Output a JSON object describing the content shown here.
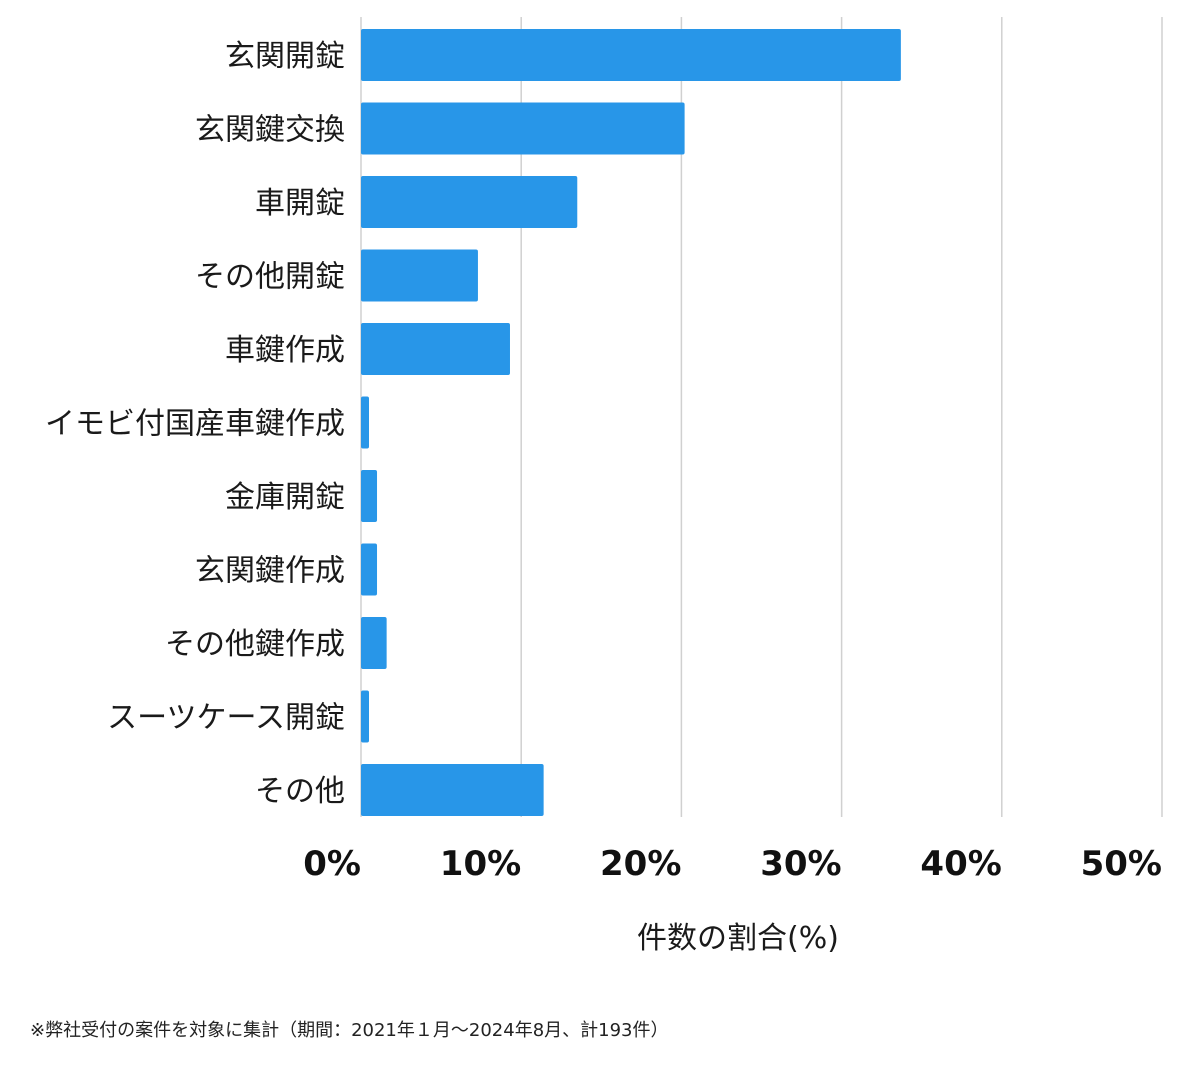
{
  "chart_data": {
    "type": "bar",
    "orientation": "horizontal",
    "categories": [
      "玄関開錠",
      "玄関鍵交換",
      "車開錠",
      "その他開錠",
      "車鍵作成",
      "イモビ付国産車鍵作成",
      "金庫開錠",
      "玄関鍵作成",
      "その他鍵作成",
      "スーツケース開錠",
      "その他"
    ],
    "values": [
      33.7,
      20.2,
      13.5,
      7.3,
      9.3,
      0.5,
      1.0,
      1.0,
      1.6,
      0.5,
      11.4
    ],
    "xlim": [
      0,
      50
    ],
    "xticks": [
      0,
      10,
      20,
      30,
      40,
      50
    ],
    "xtick_labels": [
      "0%",
      "10%",
      "20%",
      "30%",
      "40%",
      "50%"
    ],
    "xlabel": "件数の割合(%)",
    "ylabel": "",
    "title": "",
    "grid": "vertical",
    "bar_color": "#2896e8"
  },
  "footnote": "※弊社受付の案件を対象に集計（期間：2021年１月〜2024年8月、計193件）"
}
